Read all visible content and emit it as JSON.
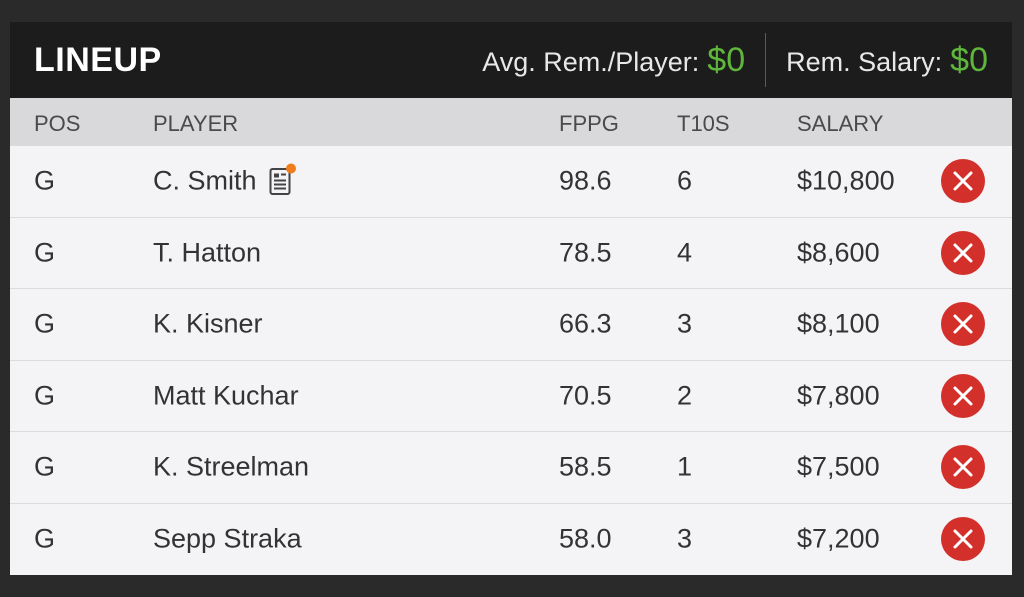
{
  "header": {
    "title": "LINEUP",
    "avg_rem_label": "Avg. Rem./Player:",
    "avg_rem_value": "$0",
    "rem_salary_label": "Rem. Salary:",
    "rem_salary_value": "$0"
  },
  "columns": {
    "pos": "POS",
    "player": "PLAYER",
    "fppg": "FPPG",
    "t10s": "T10S",
    "salary": "SALARY"
  },
  "rows": [
    {
      "pos": "G",
      "player": "C. Smith",
      "fppg": "98.6",
      "t10s": "6",
      "salary": "$10,800",
      "has_news": true
    },
    {
      "pos": "G",
      "player": "T. Hatton",
      "fppg": "78.5",
      "t10s": "4",
      "salary": "$8,600",
      "has_news": false
    },
    {
      "pos": "G",
      "player": "K. Kisner",
      "fppg": "66.3",
      "t10s": "3",
      "salary": "$8,100",
      "has_news": false
    },
    {
      "pos": "G",
      "player": "Matt Kuchar",
      "fppg": "70.5",
      "t10s": "2",
      "salary": "$7,800",
      "has_news": false
    },
    {
      "pos": "G",
      "player": "K. Streelman",
      "fppg": "58.5",
      "t10s": "1",
      "salary": "$7,500",
      "has_news": false
    },
    {
      "pos": "G",
      "player": "Sepp Straka",
      "fppg": "58.0",
      "t10s": "3",
      "salary": "$7,200",
      "has_news": false
    }
  ],
  "icons": {
    "news": "player-news-icon",
    "remove": "remove-player-icon"
  },
  "colors": {
    "money_green": "#5fb63a",
    "remove_red": "#d3302b",
    "news_dot": "#f07c1c"
  }
}
